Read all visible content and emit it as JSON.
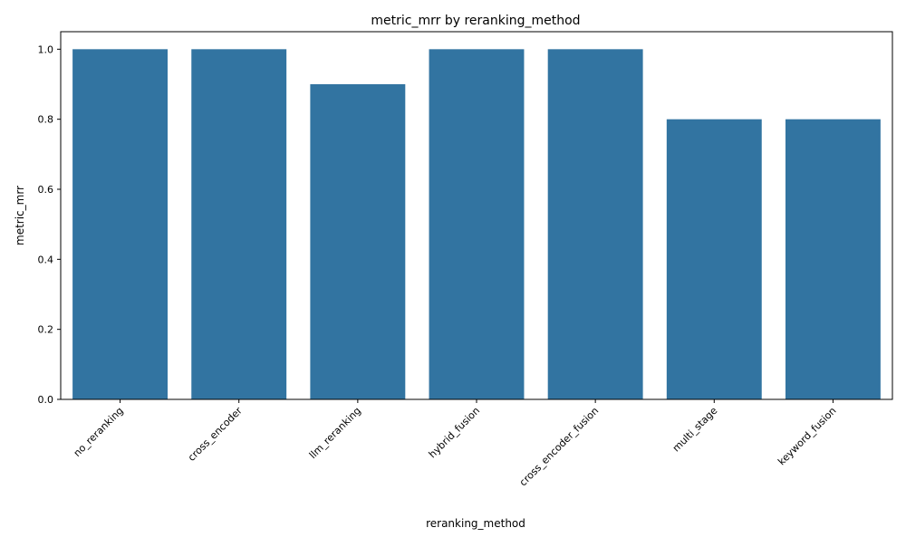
{
  "chart_data": {
    "type": "bar",
    "title": "metric_mrr by reranking_method",
    "xlabel": "reranking_method",
    "ylabel": "metric_mrr",
    "categories": [
      "no_reranking",
      "cross_encoder",
      "llm_reranking",
      "hybrid_fusion",
      "cross_encoder_fusion",
      "multi_stage",
      "keyword_fusion"
    ],
    "values": [
      1.0,
      1.0,
      0.9,
      1.0,
      1.0,
      0.8,
      0.8
    ],
    "ylim": [
      0,
      1.05
    ],
    "yticks": [
      0.0,
      0.2,
      0.4,
      0.6,
      0.8,
      1.0
    ],
    "ytick_labels": [
      "0.0",
      "0.2",
      "0.4",
      "0.6",
      "0.8",
      "1.0"
    ],
    "grid": false,
    "bar_color": "#3274a1"
  }
}
